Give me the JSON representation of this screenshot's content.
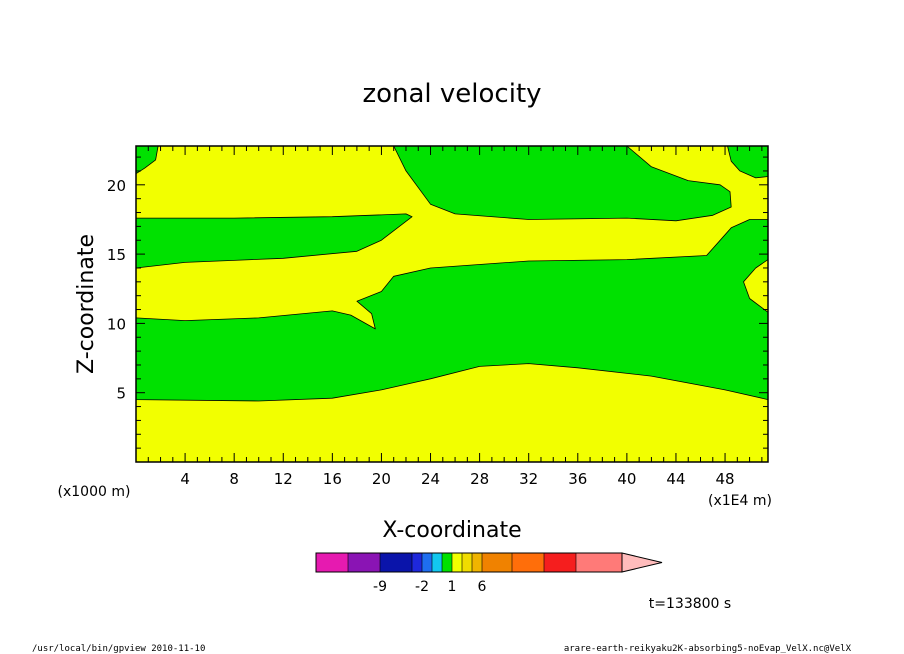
{
  "chart_data": {
    "type": "heatmap",
    "title": "zonal velocity",
    "xlabel": "X-coordinate",
    "ylabel": "Z-coordinate",
    "x_unit_left": "(x1000 m)",
    "x_unit_right": "(x1E4 m)",
    "xlim": [
      0,
      51.5
    ],
    "ylim": [
      0,
      22.8
    ],
    "x_ticks": [
      "4",
      "8",
      "12",
      "16",
      "20",
      "24",
      "28",
      "32",
      "36",
      "40",
      "44",
      "48"
    ],
    "x_tick_values": [
      4,
      8,
      12,
      16,
      20,
      24,
      28,
      32,
      36,
      40,
      44,
      48
    ],
    "y_ticks": [
      "5",
      "10",
      "15",
      "20"
    ],
    "y_tick_values": [
      5,
      10,
      15,
      20
    ],
    "background_color": "#f2ff00",
    "region_color": "#00e100",
    "regions": [
      {
        "name": "lower-band",
        "points": [
          [
            0,
            10.4
          ],
          [
            4,
            10.2
          ],
          [
            10,
            10.4
          ],
          [
            16,
            10.9
          ],
          [
            17.5,
            10.6
          ],
          [
            19.5,
            9.6
          ],
          [
            19.2,
            10.7
          ],
          [
            18,
            11.6
          ],
          [
            20,
            12.3
          ],
          [
            21,
            13.4
          ],
          [
            24,
            14.0
          ],
          [
            32,
            14.5
          ],
          [
            40,
            14.6
          ],
          [
            46.5,
            14.9
          ],
          [
            48.5,
            16.9
          ],
          [
            50,
            17.5
          ],
          [
            51.5,
            17.5
          ],
          [
            51.5,
            14.6
          ],
          [
            50.5,
            14.0
          ],
          [
            49.5,
            13.0
          ],
          [
            50,
            11.8
          ],
          [
            51.5,
            10.8
          ],
          [
            51.5,
            4.5
          ],
          [
            48,
            5.2
          ],
          [
            42,
            6.2
          ],
          [
            36,
            6.8
          ],
          [
            32,
            7.1
          ],
          [
            28,
            6.9
          ],
          [
            24,
            6.0
          ],
          [
            20,
            5.2
          ],
          [
            16,
            4.6
          ],
          [
            10,
            4.4
          ],
          [
            0,
            4.5
          ]
        ]
      },
      {
        "name": "middle-band",
        "points": [
          [
            0,
            14.0
          ],
          [
            4,
            14.4
          ],
          [
            12,
            14.7
          ],
          [
            18,
            15.2
          ],
          [
            20,
            16.0
          ],
          [
            22.5,
            17.7
          ],
          [
            22,
            17.9
          ],
          [
            16,
            17.7
          ],
          [
            8,
            17.6
          ],
          [
            0,
            17.6
          ]
        ]
      },
      {
        "name": "upper-right",
        "points": [
          [
            21,
            22.8
          ],
          [
            22,
            21.0
          ],
          [
            24,
            18.6
          ],
          [
            26,
            17.9
          ],
          [
            32,
            17.5
          ],
          [
            40,
            17.6
          ],
          [
            44,
            17.4
          ],
          [
            47,
            17.8
          ],
          [
            48.5,
            18.4
          ],
          [
            48.4,
            19.5
          ],
          [
            47.6,
            20.0
          ],
          [
            45,
            20.3
          ],
          [
            42,
            21.3
          ],
          [
            40,
            22.8
          ]
        ]
      },
      {
        "name": "top-left-corner",
        "points": [
          [
            0,
            22.8
          ],
          [
            1.8,
            22.8
          ],
          [
            1.6,
            21.8
          ],
          [
            0.7,
            21.2
          ],
          [
            0,
            20.8
          ]
        ]
      },
      {
        "name": "top-right-corner",
        "points": [
          [
            48.2,
            22.8
          ],
          [
            51.5,
            22.8
          ],
          [
            51.5,
            20.6
          ],
          [
            50.5,
            20.5
          ],
          [
            49.2,
            21.0
          ],
          [
            48.5,
            21.7
          ]
        ]
      }
    ],
    "colorbar": {
      "colors": [
        "#e61ab0",
        "#8a14b4",
        "#0a14aa",
        "#1e28dc",
        "#1e6ef0",
        "#12c8f0",
        "#00e100",
        "#f2ff00",
        "#f0dc00",
        "#f0b400",
        "#f08200",
        "#ff6e0a",
        "#f51e1e",
        "#ff7a78",
        "#ffbcbc"
      ],
      "labels": [
        "-9",
        "-2",
        "1",
        "6"
      ],
      "label_after_segment": [
        1,
        3,
        6,
        9
      ]
    }
  },
  "time_label": "t=133800 s",
  "footer": {
    "left": "/usr/local/bin/gpview  2010-11-10",
    "right": "arare-earth-reikyaku2K-absorbing5-noEvap_VelX.nc@VelX"
  }
}
